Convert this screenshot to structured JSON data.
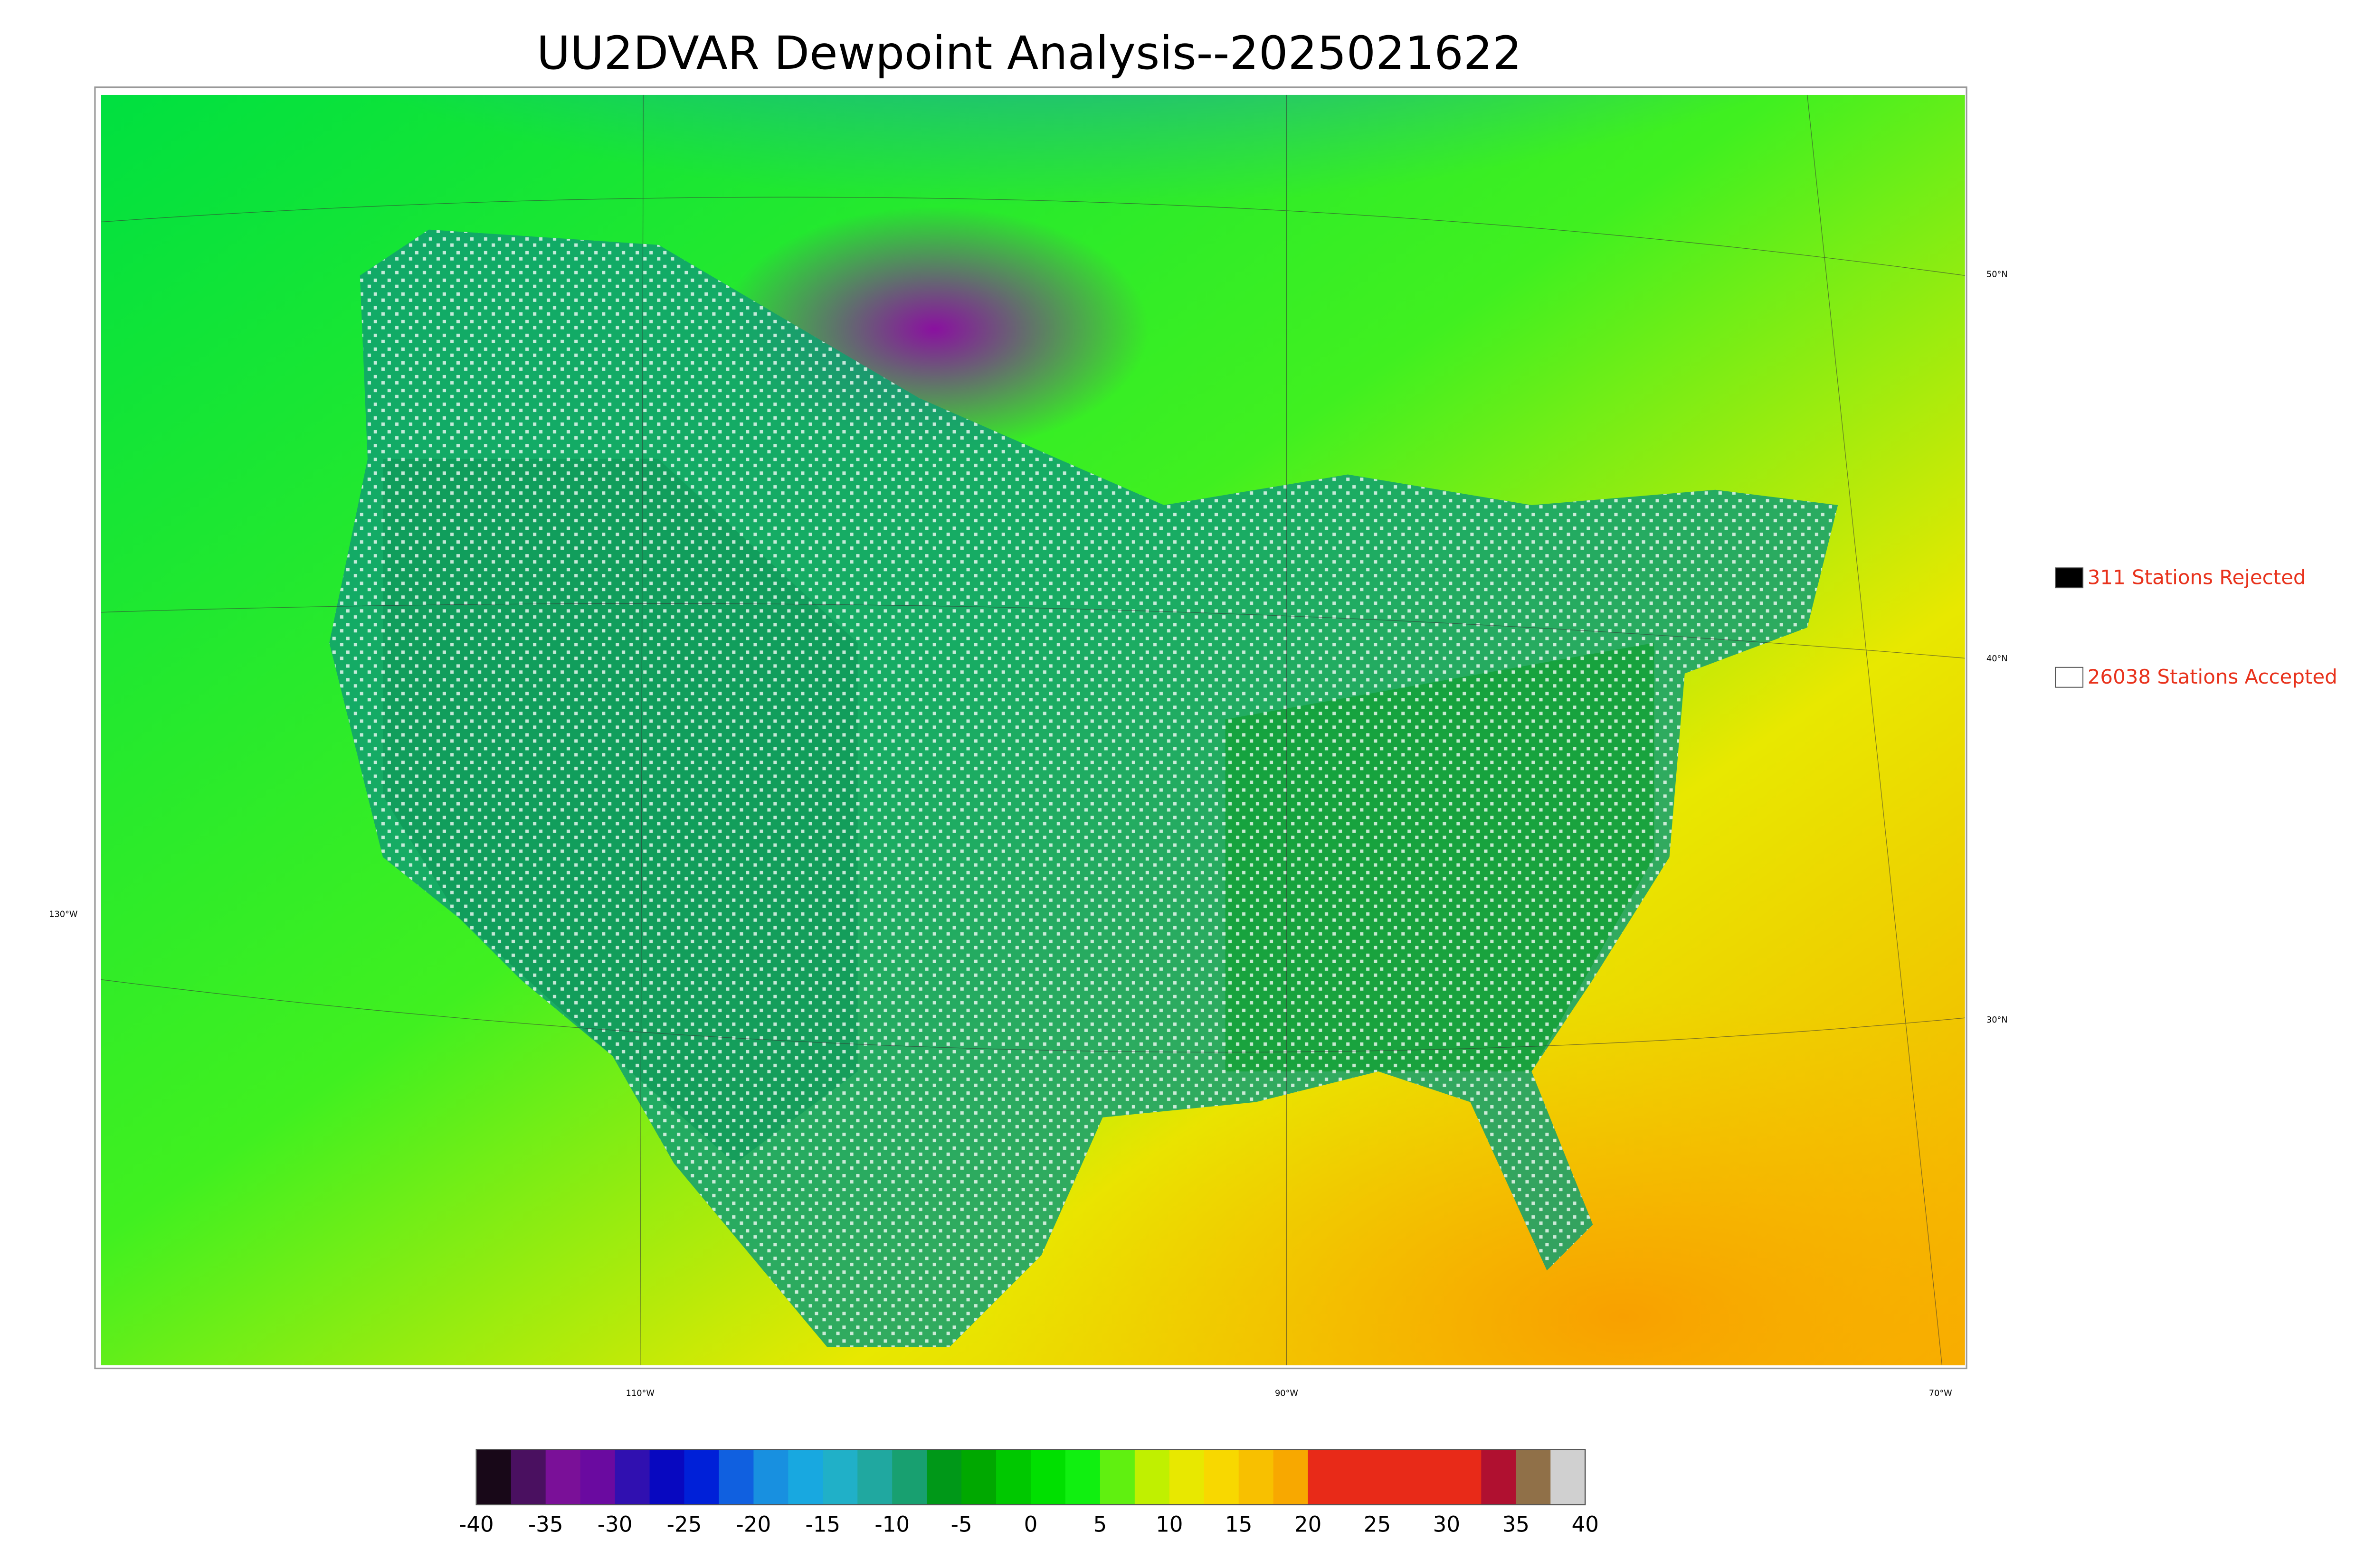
{
  "header": {
    "title": "UU2DVAR Dewpoint Analysis--2025021622"
  },
  "legend": {
    "items": [
      {
        "label": "311 Stations Rejected",
        "color": "#000000"
      },
      {
        "label": "26038 Stations Accepted",
        "color": "#ffffff"
      }
    ]
  },
  "map": {
    "lat_labels": [
      "50°N",
      "40°N",
      "30°N"
    ],
    "lon_labels": [
      "130°W",
      "110°W",
      "90°W",
      "70°W"
    ]
  },
  "colorbar": {
    "ticks": [
      -40,
      -35,
      -30,
      -25,
      -20,
      -15,
      -10,
      -5,
      0,
      5,
      10,
      15,
      20,
      25,
      30,
      35,
      40
    ],
    "colors": [
      "#180818",
      "#4a1060",
      "#7a1098",
      "#6a0aa0",
      "#3010b0",
      "#0808c0",
      "#0020d8",
      "#1060e0",
      "#1890e0",
      "#18a8e0",
      "#20b0c8",
      "#20a8a0",
      "#18a070",
      "#009818",
      "#00a800",
      "#00c800",
      "#00e000",
      "#10f010",
      "#60f010",
      "#c0f000",
      "#e8e800",
      "#f8d800",
      "#f8c000",
      "#f8a800",
      "#e82a18",
      "#e82a18",
      "#e82a18",
      "#e82a18",
      "#e82a18",
      "#b01030",
      "#907048",
      "#d0d0d0"
    ]
  }
}
